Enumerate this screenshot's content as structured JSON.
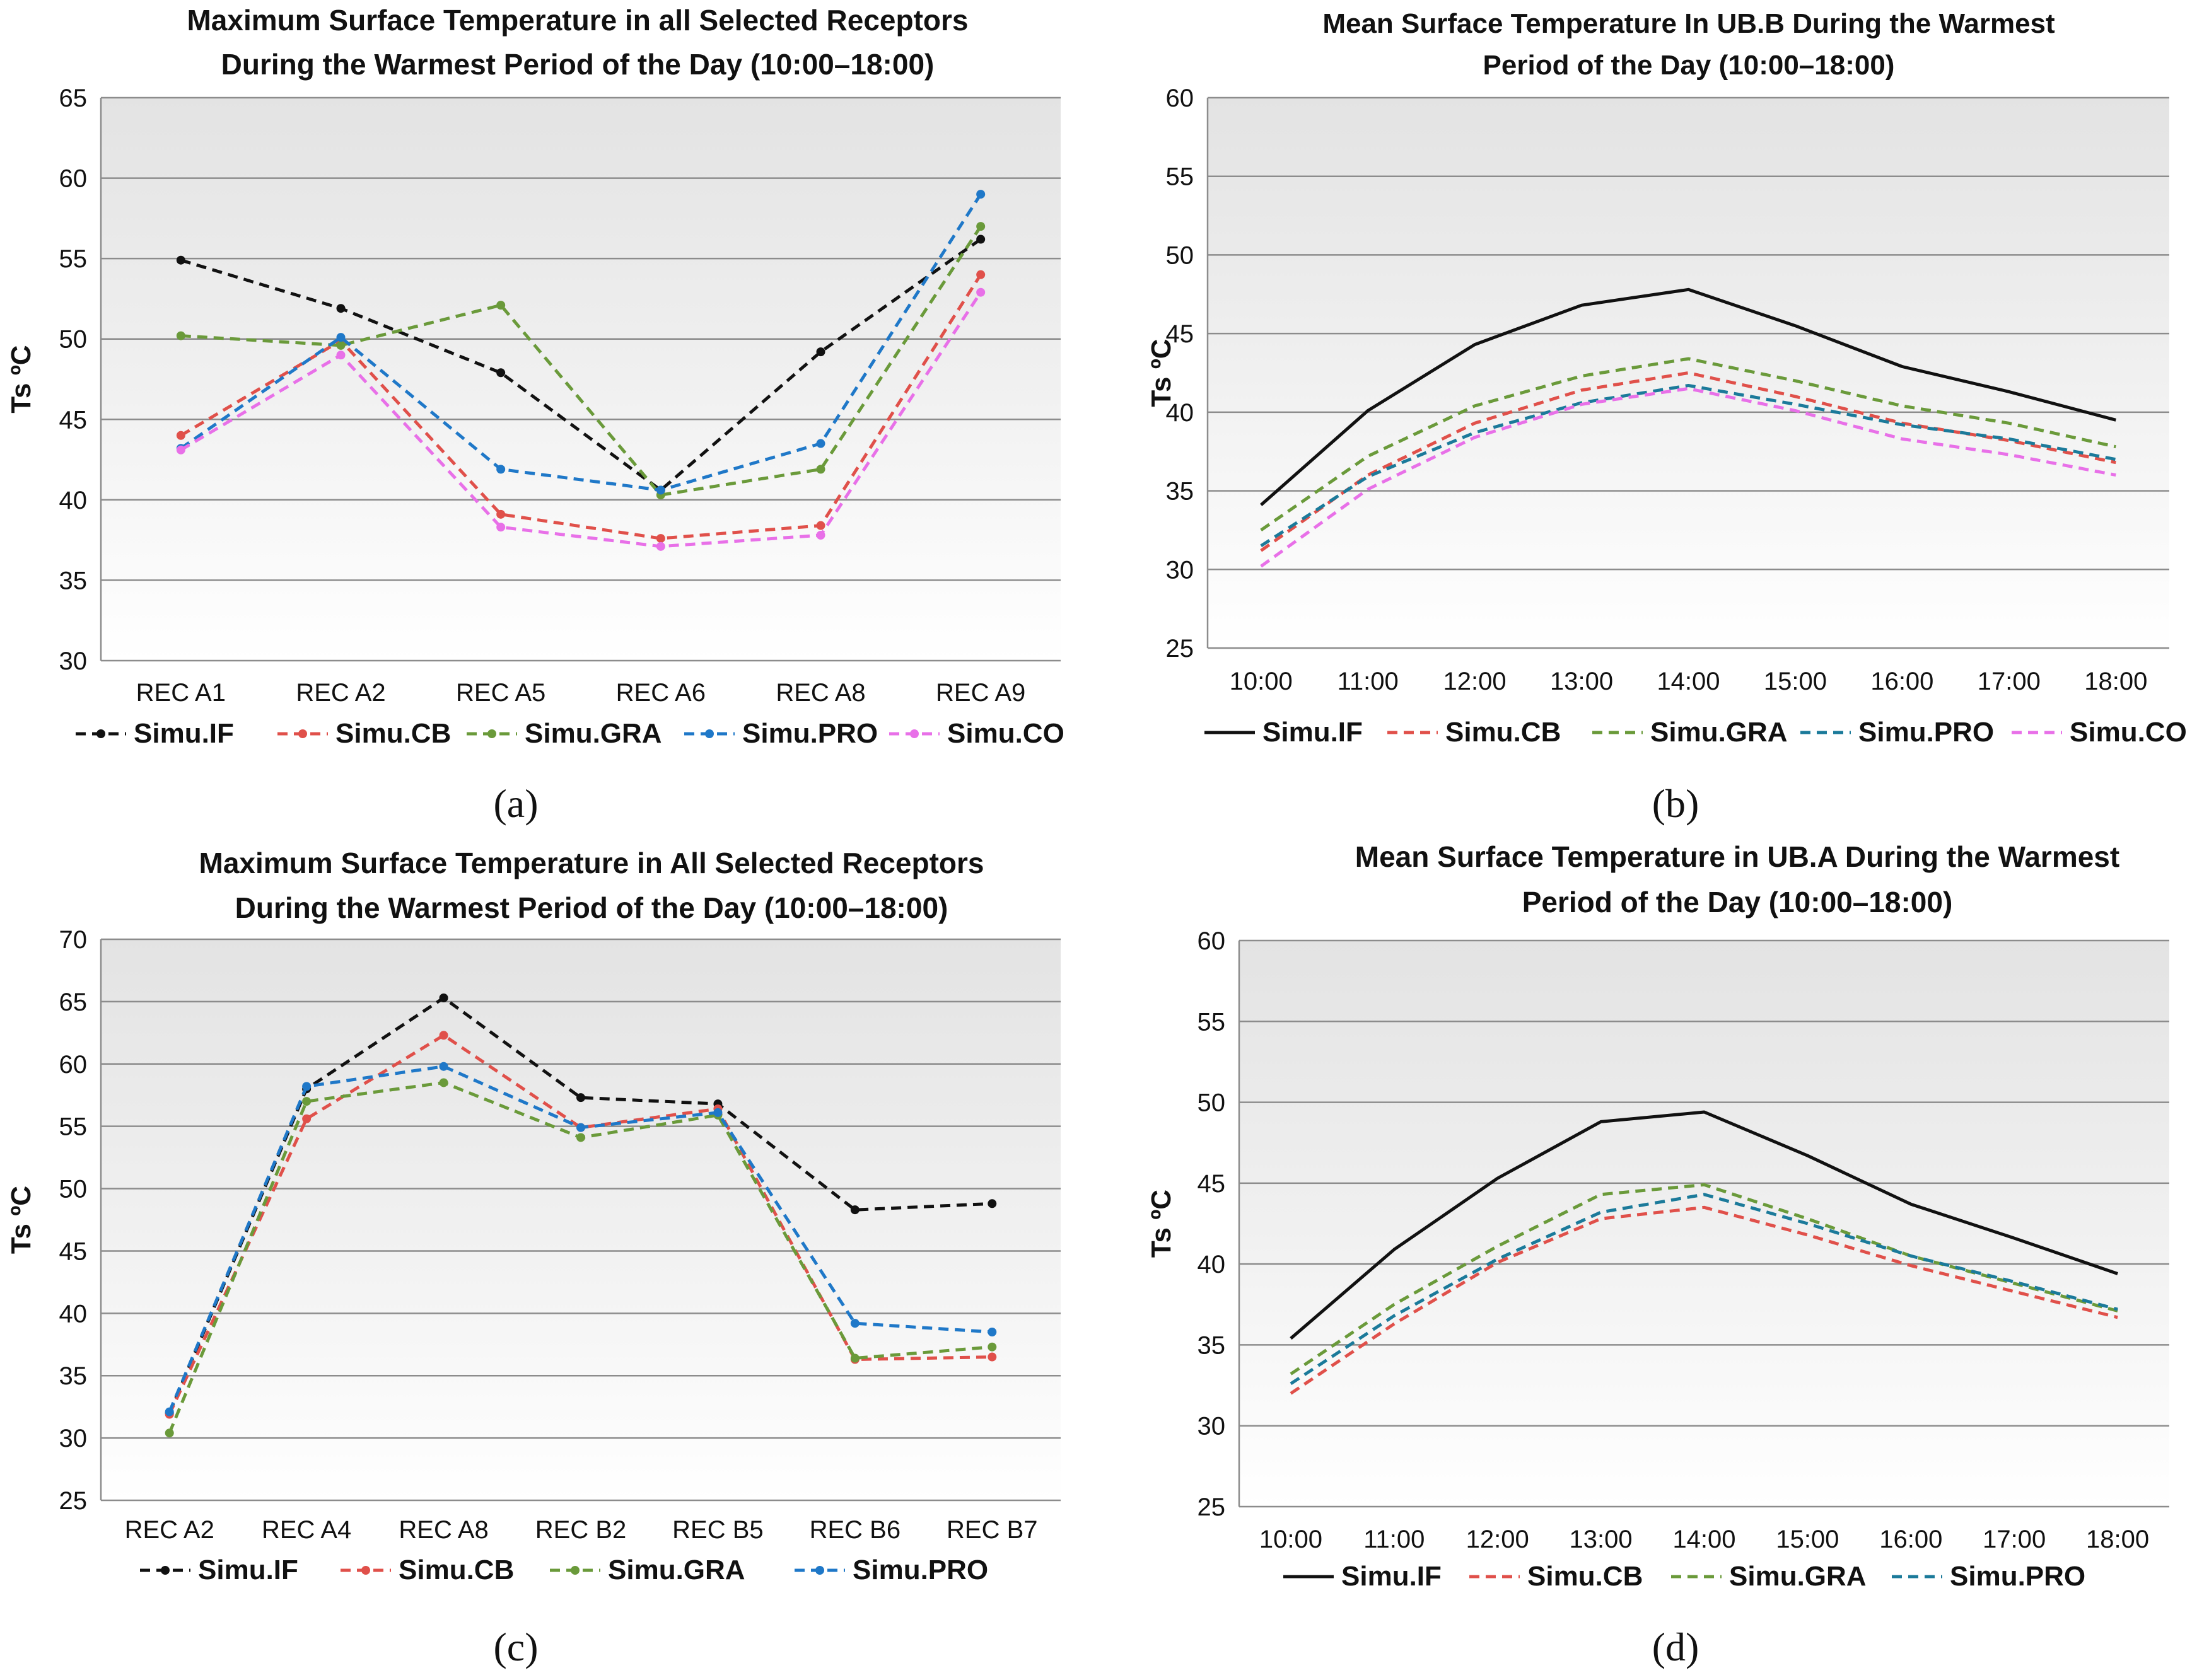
{
  "chart_data": [
    {
      "type": "line",
      "title": [
        "Maximum Surface Temperature in all Selected Receptors",
        "During the Warmest Period of the Day (10:00–18:00)"
      ],
      "ylabel": "Ts ºC",
      "xlabel": "",
      "ylim": [
        30,
        65
      ],
      "ystep": 5,
      "grid": true,
      "legend": "bottom",
      "markers": true,
      "panel_label": "(a)",
      "categories": [
        "REC A1",
        "REC A2",
        "REC A5",
        "REC A6",
        "REC A8",
        "REC A9"
      ],
      "series": [
        {
          "name": "Simu.IF",
          "color": "#111111",
          "dashed": true,
          "values": [
            54.9,
            51.9,
            47.9,
            40.6,
            49.2,
            56.2
          ]
        },
        {
          "name": "Simu.CB",
          "color": "#e0504a",
          "dashed": true,
          "values": [
            44.0,
            49.9,
            39.1,
            37.6,
            38.4,
            54.0
          ]
        },
        {
          "name": "Simu.GRA",
          "color": "#6a9a3a",
          "dashed": true,
          "values": [
            50.2,
            49.6,
            52.1,
            40.3,
            41.9,
            57.0
          ]
        },
        {
          "name": "Simu.PRO",
          "color": "#1f78c8",
          "dashed": true,
          "values": [
            43.2,
            50.1,
            41.9,
            40.6,
            43.5,
            59.0
          ]
        },
        {
          "name": "Simu.CO",
          "color": "#e870e8",
          "dashed": true,
          "values": [
            43.1,
            49.0,
            38.3,
            37.1,
            37.8,
            52.9
          ]
        }
      ]
    },
    {
      "type": "line",
      "title": [
        "Mean Surface Temperature In UB.B  During the Warmest",
        "Period of the Day (10:00–18:00)"
      ],
      "ylabel": "Ts ºC",
      "xlabel": "",
      "ylim": [
        25,
        60
      ],
      "ystep": 5,
      "grid": true,
      "legend": "bottom",
      "markers": false,
      "panel_label": "(b)",
      "categories": [
        "10:00",
        "11:00",
        "12:00",
        "13:00",
        "14:00",
        "15:00",
        "16:00",
        "17:00",
        "18:00"
      ],
      "series": [
        {
          "name": "Simu.IF",
          "color": "#111111",
          "dashed": false,
          "values": [
            34.1,
            40.1,
            44.3,
            46.8,
            47.8,
            45.5,
            42.9,
            41.3,
            39.5
          ]
        },
        {
          "name": "Simu.CB",
          "color": "#e0504a",
          "dashed": true,
          "values": [
            31.2,
            36.0,
            39.3,
            41.4,
            42.5,
            41.0,
            39.3,
            38.2,
            36.8
          ]
        },
        {
          "name": "Simu.GRA",
          "color": "#6a9a3a",
          "dashed": true,
          "values": [
            32.5,
            37.2,
            40.4,
            42.3,
            43.4,
            42.0,
            40.4,
            39.3,
            37.8
          ]
        },
        {
          "name": "Simu.PRO",
          "color": "#1b7a9a",
          "dashed": true,
          "values": [
            31.5,
            35.9,
            38.7,
            40.6,
            41.7,
            40.5,
            39.2,
            38.3,
            37.0
          ]
        },
        {
          "name": "Simu.CO",
          "color": "#e870e8",
          "dashed": true,
          "values": [
            30.2,
            35.1,
            38.4,
            40.5,
            41.5,
            40.1,
            38.3,
            37.3,
            36.0
          ]
        }
      ]
    },
    {
      "type": "line",
      "title": [
        "Maximum Surface Temperature in All Selected Receptors",
        "During the Warmest Period of the Day (10:00–18:00)"
      ],
      "ylabel": "Ts ºC",
      "xlabel": "",
      "ylim": [
        25,
        70
      ],
      "ystep": 5,
      "grid": true,
      "legend": "bottom",
      "markers": true,
      "panel_label": "(c)",
      "categories": [
        "REC A2",
        "REC A4",
        "REC A8",
        "REC B2",
        "REC B5",
        "REC B6",
        "REC B7"
      ],
      "series": [
        {
          "name": "Simu.IF",
          "color": "#111111",
          "dashed": true,
          "values": [
            32.0,
            58.0,
            65.3,
            57.3,
            56.8,
            48.3,
            48.8
          ]
        },
        {
          "name": "Simu.CB",
          "color": "#e0504a",
          "dashed": true,
          "values": [
            31.9,
            55.6,
            62.3,
            54.9,
            56.4,
            36.3,
            36.5
          ]
        },
        {
          "name": "Simu.GRA",
          "color": "#6a9a3a",
          "dashed": true,
          "values": [
            30.4,
            57.0,
            58.5,
            54.1,
            55.9,
            36.4,
            37.3
          ]
        },
        {
          "name": "Simu.PRO",
          "color": "#1f78c8",
          "dashed": true,
          "values": [
            32.1,
            58.2,
            59.8,
            54.9,
            56.1,
            39.2,
            38.5
          ]
        }
      ]
    },
    {
      "type": "line",
      "title": [
        "Mean Surface Temperature in UB.A During the Warmest",
        "Period of the Day (10:00–18:00)"
      ],
      "ylabel": "Ts ºC",
      "xlabel": "",
      "ylim": [
        25,
        60
      ],
      "ystep": 5,
      "grid": true,
      "legend": "bottom",
      "markers": false,
      "panel_label": "(d)",
      "categories": [
        "10:00",
        "11:00",
        "12:00",
        "13:00",
        "14:00",
        "15:00",
        "16:00",
        "17:00",
        "18:00"
      ],
      "series": [
        {
          "name": "Simu.IF",
          "color": "#111111",
          "dashed": false,
          "values": [
            35.4,
            40.9,
            45.3,
            48.8,
            49.4,
            46.7,
            43.7,
            41.6,
            39.4
          ]
        },
        {
          "name": "Simu.CB",
          "color": "#e0504a",
          "dashed": true,
          "values": [
            32.0,
            36.3,
            40.1,
            42.8,
            43.5,
            41.8,
            39.9,
            38.3,
            36.7
          ]
        },
        {
          "name": "Simu.GRA",
          "color": "#6a9a3a",
          "dashed": true,
          "values": [
            33.2,
            37.5,
            41.1,
            44.3,
            44.9,
            42.8,
            40.5,
            38.8,
            37.1
          ]
        },
        {
          "name": "Simu.PRO",
          "color": "#1b7a9a",
          "dashed": true,
          "values": [
            32.6,
            36.8,
            40.3,
            43.2,
            44.3,
            42.5,
            40.5,
            38.9,
            37.2
          ]
        }
      ]
    }
  ]
}
